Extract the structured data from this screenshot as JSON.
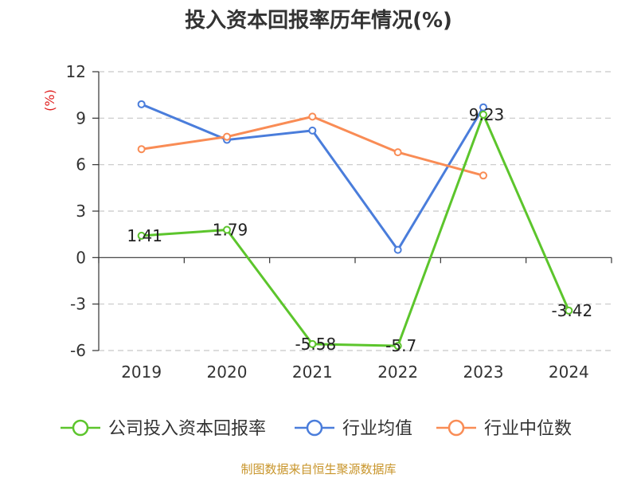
{
  "chart_data": {
    "type": "line",
    "title": "投入资本回报率历年情况(%)",
    "ylabel": "(%)",
    "categories": [
      "2019",
      "2020",
      "2021",
      "2022",
      "2023",
      "2024"
    ],
    "ylim": [
      -6,
      12
    ],
    "yticks": [
      "12",
      "9",
      "6",
      "3",
      "0",
      "-3",
      "-6"
    ],
    "ytick_values": [
      12,
      9,
      6,
      3,
      0,
      -3,
      -6
    ],
    "grid": true,
    "legend_position": "bottom",
    "series": [
      {
        "name": "公司投入资本回报率",
        "color": "#5cc52c",
        "values": [
          1.41,
          1.79,
          -5.58,
          -5.7,
          9.23,
          -3.42
        ],
        "labels": [
          "1.41",
          "1.79",
          "-5.58",
          "-5.7",
          "9.23",
          "-3.42"
        ]
      },
      {
        "name": "行业均值",
        "color": "#4a7ddb",
        "values": [
          9.9,
          7.6,
          8.2,
          0.5,
          9.7,
          null
        ]
      },
      {
        "name": "行业中位数",
        "color": "#f98c55",
        "values": [
          7.0,
          7.8,
          9.1,
          6.8,
          5.3,
          null
        ]
      }
    ],
    "source": "制图数据来自恒生聚源数据库"
  }
}
